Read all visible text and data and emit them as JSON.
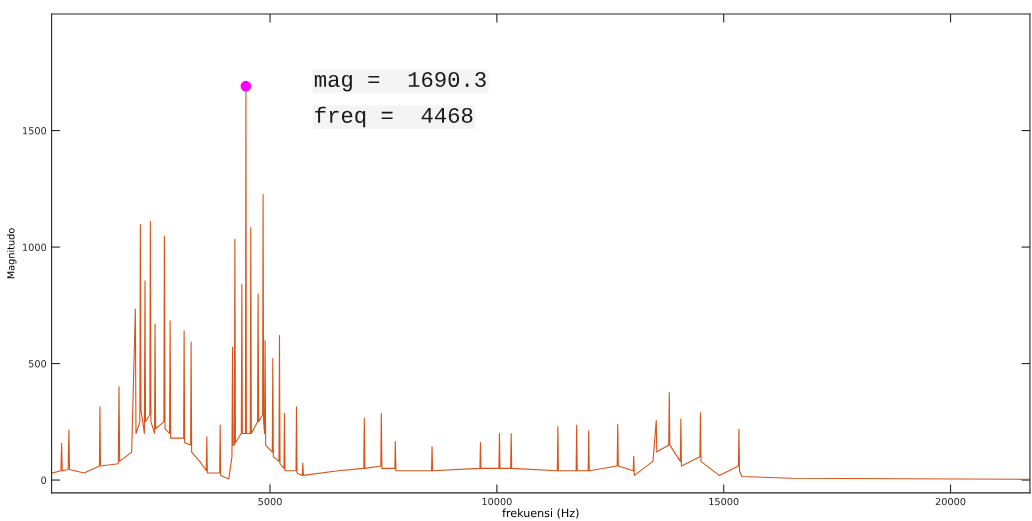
{
  "chart_data": {
    "type": "line",
    "xlabel": "frekuensi (Hz)",
    "ylabel": "Magnitudo",
    "xlim": [
      185,
      21750
    ],
    "ylim": [
      -55,
      2000
    ],
    "xticks": [
      5000,
      10000,
      15000,
      20000
    ],
    "yticks": [
      0,
      500,
      1000,
      1500
    ],
    "grid": false,
    "legend": false,
    "annotations": [
      "mag =  1690.3",
      "freq =  4468"
    ],
    "series": [
      {
        "color": "#d95319",
        "marker": "none",
        "line_style": "solid",
        "x": [
          200,
          390,
          406,
          420,
          550,
          566,
          580,
          900,
          1240,
          1251,
          1262,
          1655,
          1671,
          1685,
          1950,
          2031,
          2045,
          2130,
          2141,
          2155,
          2230,
          2244,
          2255,
          2350,
          2362,
          2375,
          2455,
          2465,
          2478,
          2660,
          2671,
          2685,
          2785,
          2797,
          2810,
          3095,
          3106,
          3118,
          3250,
          3260,
          3272,
          3450,
          3595,
          3606,
          3618,
          3890,
          3900,
          3912,
          4092,
          4160,
          4173,
          4185,
          4213,
          4225,
          4237,
          4367,
          4379,
          4390,
          4458,
          4468,
          4478,
          4565,
          4575,
          4587,
          4725,
          4737,
          4750,
          4836,
          4847,
          4858,
          4880,
          4891,
          4903,
          5050,
          5061,
          5073,
          5197,
          5208,
          5220,
          5307,
          5318,
          5330,
          5572,
          5583,
          5595,
          5711,
          5723,
          5735,
          6500,
          7066,
          7078,
          7090,
          7441,
          7453,
          7465,
          7750,
          7762,
          7775,
          8560,
          8571,
          8583,
          9626,
          9638,
          9650,
          10045,
          10057,
          10069,
          10303,
          10315,
          10327,
          11332,
          11344,
          11356,
          11747,
          11759,
          11771,
          12012,
          12024,
          12036,
          12652,
          12664,
          12676,
          13005,
          13017,
          13030,
          13440,
          13513,
          13525,
          13788,
          13800,
          13812,
          14044,
          14056,
          14068,
          14475,
          14487,
          14499,
          14900,
          15324,
          15336,
          15348,
          15400,
          16500,
          21750
        ],
        "values": [
          30,
          40,
          158,
          40,
          45,
          215,
          45,
          30,
          60,
          314,
          60,
          70,
          400,
          80,
          120,
          734,
          200,
          250,
          1097,
          300,
          200,
          855,
          250,
          280,
          1111,
          250,
          200,
          670,
          220,
          250,
          1047,
          220,
          200,
          684,
          180,
          180,
          641,
          160,
          150,
          592,
          120,
          80,
          40,
          186,
          30,
          30,
          236,
          20,
          5,
          100,
          570,
          150,
          150,
          1033,
          160,
          200,
          841,
          200,
          200,
          1690.3,
          200,
          200,
          1083,
          200,
          250,
          798,
          250,
          280,
          1225,
          250,
          200,
          599,
          150,
          120,
          521,
          100,
          80,
          620,
          70,
          50,
          286,
          40,
          40,
          314,
          30,
          20,
          73,
          20,
          40,
          50,
          265,
          50,
          60,
          286,
          50,
          50,
          165,
          40,
          40,
          144,
          40,
          50,
          161,
          50,
          50,
          200,
          50,
          50,
          200,
          50,
          40,
          230,
          40,
          40,
          236,
          40,
          40,
          211,
          40,
          60,
          238,
          60,
          40,
          102,
          20,
          80,
          255,
          120,
          150,
          376,
          150,
          80,
          262,
          60,
          100,
          289,
          80,
          20,
          60,
          219,
          40,
          15,
          8,
          3
        ]
      },
      {
        "type": "scatter",
        "color": "#ff00ff",
        "marker": "circle",
        "x": [
          4468
        ],
        "values": [
          1690.3
        ]
      }
    ]
  }
}
